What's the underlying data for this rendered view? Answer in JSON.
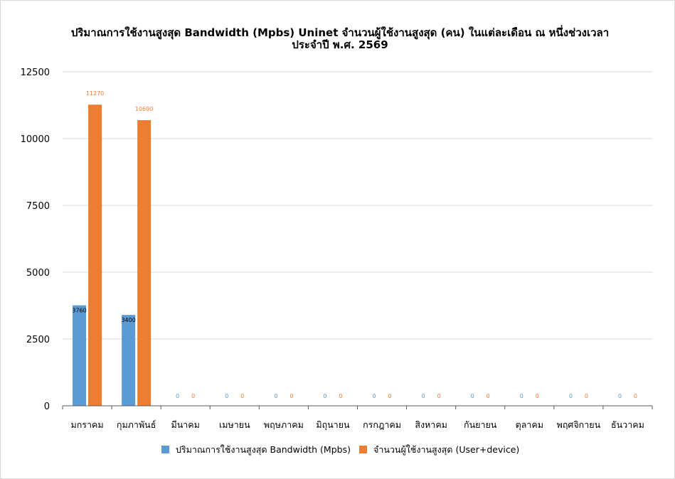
{
  "chart_data": {
    "type": "bar",
    "title_line1": "ปริมาณการใช้งานสูงสุด Bandwidth (Mpbs) Uninet จำนวนผู้ใช้งานสูงสุด (คน) ในแต่ละเดือน ณ หนึ่งช่วงเวลา",
    "title_line2": "ประจำปี พ.ศ. 2569",
    "categories": [
      "มกราคม",
      "กุมภาพันธ์",
      "มีนาคม",
      "เมษายน",
      "พฤษภาคม",
      "มิถุนายน",
      "กรกฎาคม",
      "สิงหาคม",
      "กันยายน",
      "ตุลาคม",
      "พฤศจิกายน",
      "ธันวาคม"
    ],
    "series": [
      {
        "name": "ปริมาณการใช้งานสูงสุด Bandwidth (Mpbs)",
        "color": "#5b9bd5",
        "values": [
          3760,
          3400,
          0,
          0,
          0,
          0,
          0,
          0,
          0,
          0,
          0,
          0
        ]
      },
      {
        "name": "จำนวนผู้ใช้งานสูงสุด (User+device)",
        "color": "#ed7d31",
        "values": [
          11270,
          10690,
          0,
          0,
          0,
          0,
          0,
          0,
          0,
          0,
          0,
          0
        ]
      }
    ],
    "yticks": [
      0,
      2500,
      5000,
      7500,
      10000,
      12500
    ],
    "ylim": [
      0,
      12500
    ],
    "grid": true,
    "legend": "bottom"
  }
}
